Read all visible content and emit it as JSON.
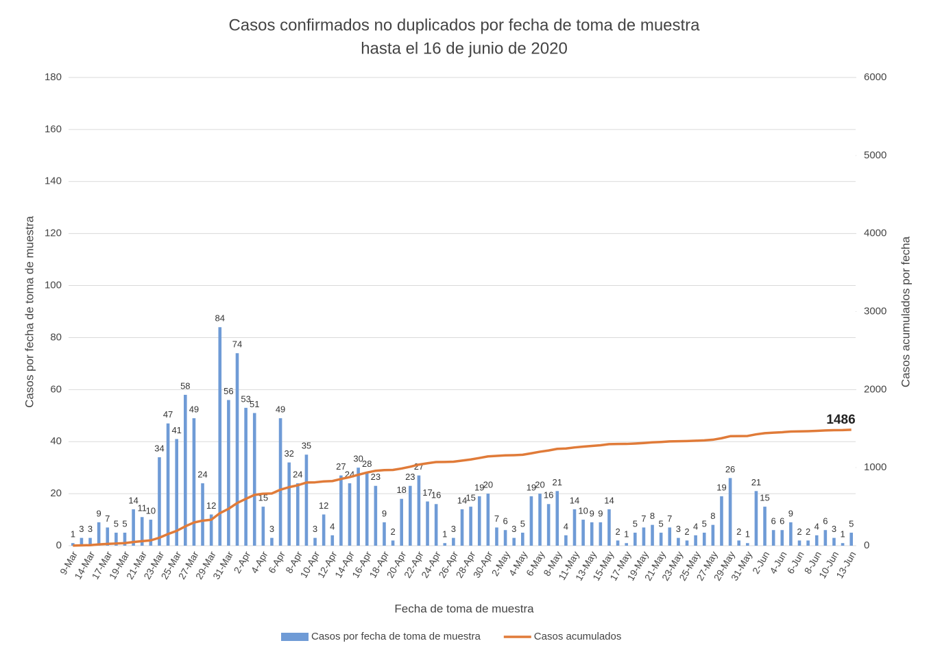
{
  "chart_data": {
    "type": "bar_line",
    "title": "Casos confirmados no duplicados por fecha de toma de muestra",
    "subtitle": "hasta el 16 de junio de 2020",
    "x_label": "Fecha de toma de muestra",
    "y_label": "Casos por fecha de toma de muestra",
    "y2_label": "Casos acumulados por fecha",
    "categories": [
      "9-Mar",
      null,
      "14-Mar",
      null,
      "17-Mar",
      null,
      "19-Mar",
      null,
      "21-Mar",
      null,
      "23-Mar",
      null,
      "25-Mar",
      null,
      "27-Mar",
      null,
      "29-Mar",
      null,
      "31-Mar",
      null,
      "2-Apr",
      null,
      "4-Apr",
      null,
      "6-Apr",
      null,
      "8-Apr",
      null,
      "10-Apr",
      null,
      "12-Apr",
      null,
      "14-Apr",
      null,
      "16-Apr",
      null,
      "18-Apr",
      null,
      "20-Apr",
      null,
      "22-Apr",
      null,
      "24-Apr",
      null,
      "26-Apr",
      null,
      "28-Apr",
      null,
      "30-Apr",
      null,
      "2-May",
      null,
      "4-May",
      null,
      "6-May",
      null,
      "8-May",
      null,
      "11-May",
      null,
      "13-May",
      null,
      "15-May",
      null,
      "17-May",
      null,
      "19-May",
      null,
      "21-May",
      null,
      "23-May",
      null,
      "25-May",
      null,
      "27-May",
      null,
      "29-May",
      null,
      "31-May",
      null,
      "2-Jun",
      null,
      "4-Jun",
      null,
      "6-Jun",
      null,
      "8-Jun",
      null,
      "10-Jun",
      null,
      "13-Jun"
    ],
    "series": [
      {
        "name": "Casos por fecha de toma de muestra",
        "type": "bar",
        "color": "#6f9bd6",
        "values": [
          1,
          3,
          3,
          9,
          7,
          5,
          5,
          14,
          11,
          10,
          34,
          47,
          41,
          58,
          49,
          24,
          12,
          84,
          56,
          74,
          53,
          51,
          15,
          3,
          49,
          32,
          24,
          35,
          3,
          12,
          4,
          27,
          24,
          30,
          28,
          23,
          9,
          2,
          18,
          23,
          27,
          17,
          16,
          1,
          3,
          14,
          15,
          19,
          20,
          7,
          6,
          3,
          5,
          19,
          20,
          16,
          21,
          4,
          14,
          10,
          9,
          9,
          14,
          2,
          1,
          5,
          7,
          8,
          5,
          7,
          3,
          2,
          4,
          5,
          8,
          19,
          26,
          2,
          1,
          21,
          15,
          6,
          6,
          9,
          2,
          2,
          4,
          6,
          3,
          1,
          5
        ]
      },
      {
        "name": "Casos acumulados",
        "type": "line",
        "axis": "y2",
        "color": "#e07b39",
        "values": [
          1,
          4,
          7,
          16,
          23,
          28,
          33,
          47,
          58,
          68,
          102,
          149,
          190,
          248,
          297,
          321,
          333,
          417,
          473,
          547,
          600,
          651,
          666,
          669,
          718,
          750,
          774,
          809,
          812,
          824,
          828,
          855,
          879,
          909,
          937,
          960,
          969,
          971,
          989,
          1012,
          1039,
          1056,
          1072,
          1073,
          1076,
          1090,
          1105,
          1124,
          1144,
          1151,
          1157,
          1160,
          1165,
          1184,
          1204,
          1220,
          1241,
          1245,
          1259,
          1269,
          1278,
          1287,
          1301,
          1303,
          1304,
          1309,
          1316,
          1324,
          1329,
          1336,
          1339,
          1341,
          1345,
          1350,
          1358,
          1377,
          1403,
          1405,
          1406,
          1427,
          1442,
          1448,
          1454,
          1463,
          1465,
          1467,
          1471,
          1477,
          1480,
          1481,
          1486
        ],
        "value_labels": [
          null,
          null,
          null,
          null,
          null,
          null,
          null,
          null,
          null,
          null,
          null,
          null,
          null,
          null,
          null,
          null,
          null,
          null,
          null,
          null,
          null,
          null,
          null,
          null,
          null,
          null,
          null,
          null,
          null,
          null,
          null,
          null,
          null,
          null,
          null,
          null,
          null,
          null,
          null,
          null,
          null,
          null,
          null,
          null,
          null,
          null,
          null,
          null,
          null,
          null,
          null,
          null,
          null,
          null,
          null,
          null,
          null,
          null,
          null,
          null,
          null,
          null,
          null,
          null,
          null,
          null,
          null,
          null,
          null,
          null,
          null,
          null,
          null,
          null,
          null,
          null,
          null,
          null,
          null,
          null,
          null,
          null,
          null,
          null,
          null,
          null,
          null,
          null,
          null,
          null,
          "1486"
        ]
      }
    ],
    "ylim": [
      0,
      180
    ],
    "yticks": [
      0,
      20,
      40,
      60,
      80,
      100,
      120,
      140,
      160,
      180
    ],
    "y2lim": [
      0,
      6000
    ],
    "y2ticks": [
      0,
      1000,
      2000,
      3000,
      4000,
      5000,
      6000
    ],
    "grid": true,
    "legend": "bottom"
  }
}
